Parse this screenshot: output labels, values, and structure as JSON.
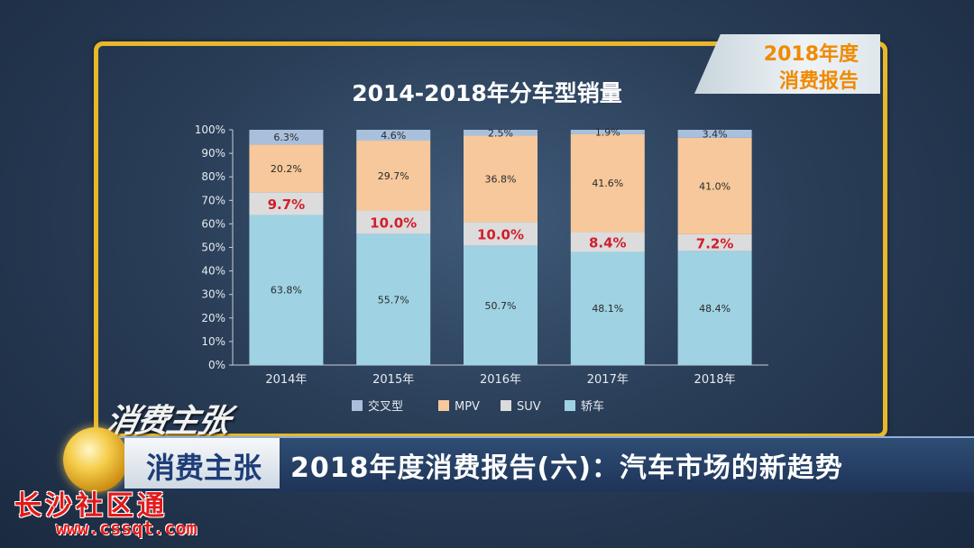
{
  "badge": {
    "year": "2018年度",
    "report": "消费报告"
  },
  "logo_text": "消费主张",
  "lower_third": {
    "program": "消费主张",
    "headline": "2018年度消费报告(六)：汽车市场的新趋势"
  },
  "watermark": {
    "name": "长沙社区通",
    "url": "www.cssqt.com"
  },
  "chart_data": {
    "type": "bar",
    "stacked": true,
    "title": "2014-2018年分车型销量",
    "categories": [
      "2014年",
      "2015年",
      "2016年",
      "2017年",
      "2018年"
    ],
    "ylim": [
      0,
      100
    ],
    "yticks": [
      "0%",
      "10%",
      "20%",
      "30%",
      "40%",
      "50%",
      "60%",
      "70%",
      "80%",
      "90%",
      "100%"
    ],
    "legend_position": "bottom",
    "series": [
      {
        "name": "轿车",
        "color": "#9fd2e3",
        "values": [
          63.8,
          55.7,
          50.7,
          48.1,
          48.4
        ],
        "labels": [
          "63.8%",
          "55.7%",
          "50.7%",
          "48.1%",
          "48.4%"
        ],
        "highlight": false
      },
      {
        "name": "SUV",
        "color": "#dcdcdc",
        "values": [
          9.7,
          10.0,
          10.0,
          8.4,
          7.2
        ],
        "labels": [
          "9.7%",
          "10.0%",
          "10.0%",
          "8.4%",
          "7.2%"
        ],
        "highlight": true
      },
      {
        "name": "MPV",
        "color": "#f6c89b",
        "values": [
          20.2,
          29.7,
          36.8,
          41.6,
          41.0
        ],
        "labels": [
          "20.2%",
          "29.7%",
          "36.8%",
          "41.6%",
          "41.0%"
        ],
        "highlight": false
      },
      {
        "name": "交叉型",
        "color": "#a9c0dd",
        "values": [
          6.3,
          4.6,
          2.5,
          1.9,
          3.4
        ],
        "labels": [
          "6.3%",
          "4.6%",
          "2.5%",
          "1.9%",
          "3.4%"
        ],
        "highlight": false
      }
    ],
    "legend_order": [
      "交叉型",
      "MPV",
      "SUV",
      "轿车"
    ],
    "highlight_color": "#d21e2b"
  }
}
